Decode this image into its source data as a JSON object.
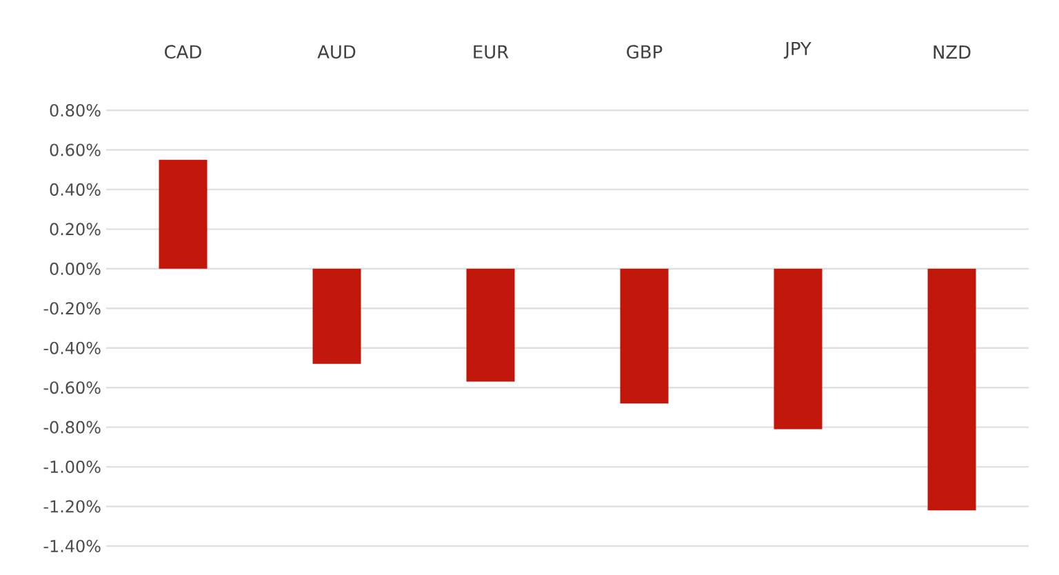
{
  "chart_data": {
    "type": "bar",
    "categories": [
      "CAD",
      "AUD",
      "EUR",
      "GBP",
      "JPY",
      "NZD"
    ],
    "values": [
      0.55,
      -0.48,
      -0.57,
      -0.68,
      -0.81,
      -1.22
    ],
    "color": "#c0170a",
    "ylim": [
      -1.4,
      0.8
    ],
    "yticks": [
      {
        "value": 0.8,
        "label": "0.80%"
      },
      {
        "value": 0.6,
        "label": "0.60%"
      },
      {
        "value": 0.4,
        "label": "0.40%"
      },
      {
        "value": 0.2,
        "label": "0.20%"
      },
      {
        "value": 0.0,
        "label": "0.00%"
      },
      {
        "value": -0.2,
        "label": "-0.20%"
      },
      {
        "value": -0.4,
        "label": "-0.40%"
      },
      {
        "value": -0.6,
        "label": "-0.60%"
      },
      {
        "value": -0.8,
        "label": "-0.80%"
      },
      {
        "value": -1.0,
        "label": "-1.00%"
      },
      {
        "value": -1.2,
        "label": "-1.20%"
      },
      {
        "value": -1.4,
        "label": "-1.40%"
      }
    ],
    "grid": "y"
  }
}
